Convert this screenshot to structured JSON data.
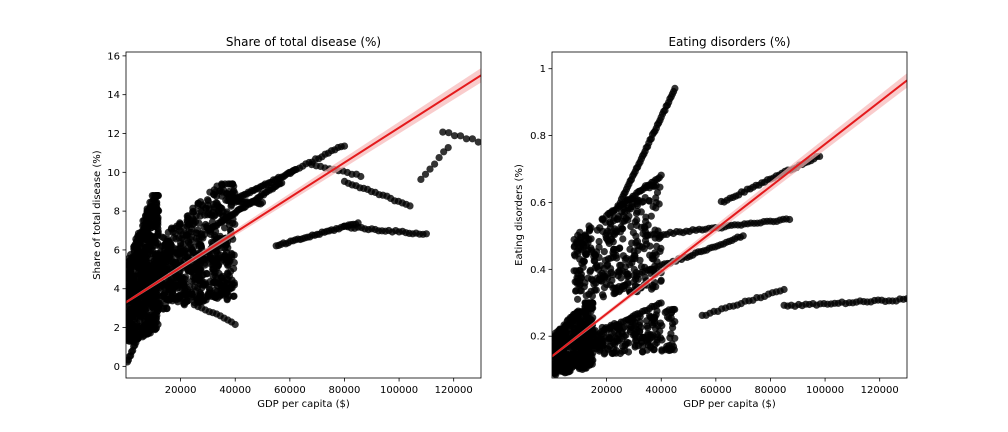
{
  "chart_data": [
    {
      "type": "scatter",
      "title": "Share of total disease (%)",
      "xlabel": "GDP per capita ($)",
      "ylabel": "Share of total disease (%)",
      "xlim": [
        0,
        130000
      ],
      "ylim": [
        -0.6,
        16.2
      ],
      "xticks": [
        20000,
        40000,
        60000,
        80000,
        100000,
        120000
      ],
      "yticks": [
        0,
        2,
        4,
        6,
        8,
        10,
        12,
        14,
        16
      ],
      "grid": false,
      "point_color": "#000000",
      "fit_color": "#e41a1c",
      "ci_color": "#f7b7b7",
      "fit_line": {
        "x": [
          0,
          130000
        ],
        "y": [
          3.3,
          15.0
        ]
      },
      "clusters": [
        {
          "x": [
            500,
            12000
          ],
          "y": [
            1.0,
            8.8
          ],
          "n": 700
        },
        {
          "x": [
            12000,
            40000
          ],
          "y": [
            2.8,
            9.4
          ],
          "n": 500
        },
        {
          "x": [
            5000,
            38000
          ],
          "y": [
            3.0,
            6.6
          ],
          "n": 200
        }
      ],
      "trails": [
        {
          "x": [
            30000,
            57000
          ],
          "y": [
            7.0,
            9.5
          ],
          "n": 50
        },
        {
          "x": [
            38000,
            62000
          ],
          "y": [
            8.5,
            10.1
          ],
          "n": 40
        },
        {
          "x": [
            55000,
            85000
          ],
          "y": [
            6.2,
            7.4
          ],
          "n": 35
        },
        {
          "x": [
            80000,
            110000
          ],
          "y": [
            7.2,
            6.8
          ],
          "n": 25
        },
        {
          "x": [
            60000,
            80000
          ],
          "y": [
            10.0,
            11.4
          ],
          "n": 18
        },
        {
          "x": [
            68000,
            86000
          ],
          "y": [
            10.4,
            9.8
          ],
          "n": 12
        },
        {
          "x": [
            80000,
            104000
          ],
          "y": [
            9.5,
            8.3
          ],
          "n": 18
        },
        {
          "x": [
            25000,
            40000
          ],
          "y": [
            3.2,
            2.2
          ],
          "n": 12
        },
        {
          "x": [
            40000,
            50000
          ],
          "y": [
            8.5,
            8.4
          ],
          "n": 15
        },
        {
          "x": [
            108000,
            118000
          ],
          "y": [
            9.6,
            11.3
          ],
          "n": 7
        },
        {
          "x": [
            116000,
            129000
          ],
          "y": [
            12.1,
            11.6
          ],
          "n": 7
        },
        {
          "x": [
            500,
            4000
          ],
          "y": [
            0.2,
            1.4
          ],
          "n": 10
        }
      ]
    },
    {
      "type": "scatter",
      "title": "Eating disorders (%)",
      "xlabel": "GDP per capita ($)",
      "ylabel": "Eating disorders (%)",
      "xlim": [
        0,
        130000
      ],
      "ylim": [
        0.075,
        1.05
      ],
      "xticks": [
        20000,
        40000,
        60000,
        80000,
        100000,
        120000
      ],
      "yticks": [
        0.2,
        0.4,
        0.6,
        0.8,
        1.0
      ],
      "grid": false,
      "point_color": "#000000",
      "fit_color": "#e41a1c",
      "ci_color": "#f7b7b7",
      "fit_line": {
        "x": [
          0,
          130000
        ],
        "y": [
          0.14,
          0.965
        ]
      },
      "clusters": [
        {
          "x": [
            500,
            15000
          ],
          "y": [
            0.08,
            0.3
          ],
          "n": 500
        },
        {
          "x": [
            8000,
            40000
          ],
          "y": [
            0.3,
            0.65
          ],
          "n": 350
        },
        {
          "x": [
            15000,
            45000
          ],
          "y": [
            0.14,
            0.28
          ],
          "n": 200
        }
      ],
      "trails": [
        {
          "x": [
            25000,
            45000
          ],
          "y": [
            0.6,
            0.94
          ],
          "n": 45
        },
        {
          "x": [
            20000,
            40000
          ],
          "y": [
            0.56,
            0.68
          ],
          "n": 30
        },
        {
          "x": [
            35000,
            87000
          ],
          "y": [
            0.5,
            0.55
          ],
          "n": 45
        },
        {
          "x": [
            30000,
            70000
          ],
          "y": [
            0.38,
            0.5
          ],
          "n": 40
        },
        {
          "x": [
            62000,
            98000
          ],
          "y": [
            0.6,
            0.74
          ],
          "n": 35
        },
        {
          "x": [
            55000,
            85000
          ],
          "y": [
            0.26,
            0.34
          ],
          "n": 22
        },
        {
          "x": [
            85000,
            130000
          ],
          "y": [
            0.29,
            0.31
          ],
          "n": 35
        },
        {
          "x": [
            15000,
            40000
          ],
          "y": [
            0.2,
            0.3
          ],
          "n": 30
        },
        {
          "x": [
            500,
            8000
          ],
          "y": [
            0.09,
            0.14
          ],
          "n": 30
        }
      ]
    }
  ]
}
